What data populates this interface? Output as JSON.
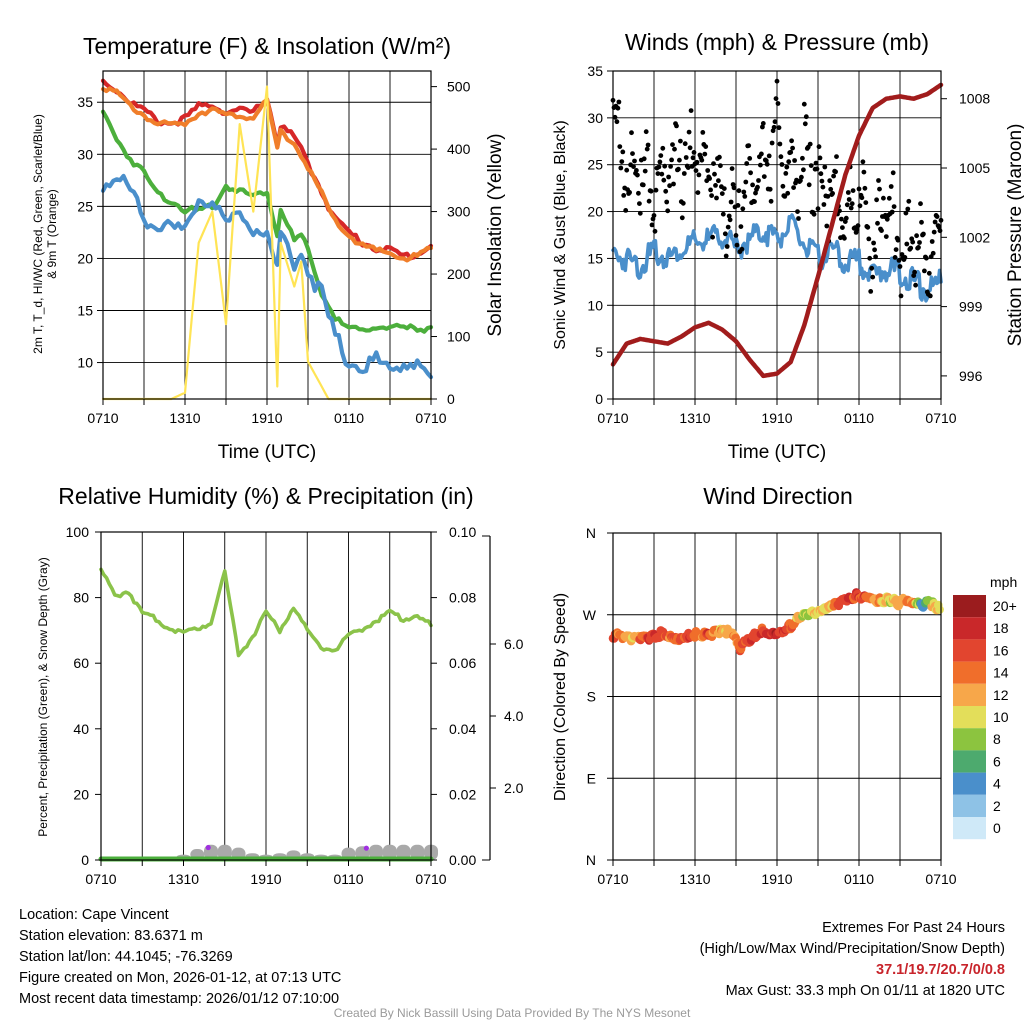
{
  "chart_data": [
    {
      "id": "temp",
      "type": "line",
      "title": "Temperature (F) & Insolation (W/m²)",
      "xlabel": "Time (UTC)",
      "ylabel_lines": [
        "2m T, T_d, HI/WC (Red, Green, Scarlet/Blue)",
        "& 9m T (Orange)"
      ],
      "ylabel_right": "Solar Insolation (Yellow)",
      "x_hours": [
        0,
        1,
        2,
        3,
        4,
        5,
        6,
        7,
        8,
        9,
        10,
        11,
        12,
        12.75,
        13,
        14,
        14.5,
        15,
        16,
        16.5,
        17,
        18,
        19,
        20,
        21,
        22,
        23,
        24
      ],
      "x_ticks": [
        "0710",
        "1310",
        "1910",
        "0110",
        "0710"
      ],
      "ylim": [
        6.5,
        38.0
      ],
      "y_ticks": [
        10,
        15,
        20,
        25,
        30,
        35
      ],
      "y2lim": [
        0,
        525
      ],
      "y2_ticks": [
        0,
        100,
        200,
        300,
        400,
        500
      ],
      "series": [
        {
          "name": "2m T",
          "color": "#d62728",
          "values": [
            37.0,
            36.2,
            35.0,
            34.2,
            33.2,
            33.0,
            33.4,
            34.6,
            34.8,
            34.0,
            34.2,
            34.0,
            35.5,
            31.0,
            32.8,
            31.6,
            30.5,
            29.0,
            26.5,
            25.0,
            23.8,
            22.5,
            21.5,
            21.0,
            20.8,
            20.2,
            20.4,
            21.2
          ]
        },
        {
          "name": "9m T",
          "color": "#f07e2a",
          "values": [
            36.6,
            35.8,
            34.6,
            33.8,
            32.9,
            32.8,
            33.0,
            34.0,
            34.4,
            33.6,
            33.8,
            33.6,
            35.0,
            30.5,
            32.2,
            31.0,
            30.0,
            28.6,
            26.2,
            24.7,
            23.5,
            22.2,
            21.2,
            20.7,
            20.5,
            20.0,
            20.2,
            21.0
          ]
        },
        {
          "name": "T_d",
          "color": "#4caf3c",
          "values": [
            34.0,
            31.5,
            29.6,
            28.2,
            26.2,
            25.6,
            24.7,
            24.5,
            25.0,
            27.0,
            26.5,
            26.0,
            26.5,
            22.3,
            24.8,
            21.7,
            22.1,
            20.8,
            16.5,
            15.6,
            14.2,
            13.2,
            13.0,
            13.6,
            13.3,
            13.3,
            13.2,
            13.4
          ]
        },
        {
          "name": "HI/WC",
          "color": "#4a8fcb",
          "values": [
            27.2,
            27.5,
            26.6,
            24.0,
            23.4,
            22.6,
            22.4,
            26.0,
            25.4,
            23.0,
            24.6,
            23.0,
            22.3,
            18.7,
            22.5,
            19.8,
            20.5,
            18.9,
            16.6,
            14.2,
            12.5,
            10.0,
            9.8,
            10.2,
            9.3,
            10.0,
            9.9,
            8.6
          ]
        },
        {
          "name": "Solar Insolation",
          "axis": "right",
          "color": "#ffe455",
          "values": [
            0,
            0,
            0,
            0,
            0,
            0,
            10,
            250,
            300,
            120,
            440,
            300,
            500,
            20,
            250,
            180,
            220,
            60,
            20,
            0,
            0,
            0,
            0,
            0,
            0,
            0,
            0,
            0
          ]
        }
      ]
    },
    {
      "id": "wind",
      "type": "line",
      "title": "Winds (mph) & Pressure (mb)",
      "xlabel": "Time (UTC)",
      "ylabel": "Sonic Wind & Gust (Blue, Black)",
      "ylabel_right": "Station Pressure (Maroon)",
      "x_hours": [
        0,
        1,
        2,
        3,
        4,
        5,
        6,
        7,
        8,
        9,
        10,
        11,
        12,
        13,
        14,
        15,
        16,
        17,
        18,
        19,
        20,
        21,
        22,
        23,
        24
      ],
      "x_ticks": [
        "0710",
        "1310",
        "1910",
        "0110",
        "0710"
      ],
      "ylim": [
        0,
        35
      ],
      "y_ticks": [
        0,
        5,
        10,
        15,
        20,
        25,
        30,
        35
      ],
      "y2lim": [
        995.0,
        1009.2
      ],
      "y2_ticks": [
        996,
        999,
        1002,
        1005,
        1008
      ],
      "series": [
        {
          "name": "Sonic Wind",
          "color": "#4a8fcb",
          "values": [
            15.5,
            15.0,
            14.2,
            15.8,
            15.0,
            16.0,
            16.6,
            17.0,
            17.5,
            16.0,
            17.0,
            18.0,
            17.2,
            18.5,
            16.5,
            15.0,
            16.0,
            14.5,
            14.8,
            13.0,
            14.0,
            13.5,
            12.5,
            11.5,
            12.5
          ]
        },
        {
          "name": "Gust",
          "style": "markers",
          "color": "#000000",
          "values": [
            32.8,
            24.5,
            25.5,
            23.0,
            26.2,
            26.5,
            28.0,
            25.5,
            22.0,
            20.5,
            25.0,
            26.5,
            30.0,
            24.5,
            27.5,
            24.5,
            23.0,
            20.5,
            23.0,
            17.5,
            22.5,
            17.0,
            17.5,
            16.0,
            19.5
          ]
        },
        {
          "name": "Station Pressure",
          "axis": "right",
          "color": "#a11c1c",
          "values": [
            996.5,
            997.4,
            997.6,
            997.5,
            997.4,
            997.7,
            998.1,
            998.3,
            998.0,
            997.5,
            996.7,
            996.0,
            996.1,
            996.6,
            998.2,
            1000.3,
            1002.5,
            1004.7,
            1006.4,
            1007.6,
            1008.0,
            1008.1,
            1008.0,
            1008.2,
            1008.6
          ]
        }
      ]
    },
    {
      "id": "rh",
      "type": "area",
      "title": "Relative Humidity (%) & Precipitation (in)",
      "ylabel": "Percent, Precipitation (Green), & Snow Depth (Gray)",
      "x_hours": [
        0,
        1,
        2,
        3,
        4,
        5,
        6,
        7,
        8,
        9,
        10,
        11,
        12,
        13,
        14,
        15,
        16,
        17,
        18,
        19,
        20,
        21,
        22,
        23,
        24
      ],
      "x_ticks": [
        "0710",
        "1310",
        "1910",
        "0110",
        "0710"
      ],
      "ylim": [
        0,
        100
      ],
      "y_ticks": [
        0,
        20,
        40,
        60,
        80,
        100
      ],
      "y2lim": [
        0,
        0.1
      ],
      "y2_ticks": [
        "0.00",
        "0.02",
        "0.04",
        "0.06",
        "0.08",
        "0.10"
      ],
      "y3_ticks": [
        "2.0",
        "4.0",
        "6.0"
      ],
      "series": [
        {
          "name": "Relative Humidity",
          "color": "#8bc34a",
          "values": [
            88.5,
            80.5,
            82.0,
            75.0,
            73.5,
            70.5,
            69.5,
            70.5,
            72.5,
            88.0,
            62.5,
            68.0,
            75.5,
            70.0,
            77.0,
            70.0,
            65.0,
            64.0,
            68.0,
            70.5,
            73.0,
            75.5,
            73.5,
            74.5,
            71.5
          ]
        },
        {
          "name": "Precipitation",
          "color": "#4caf3c",
          "values": [
            0,
            0,
            0,
            0,
            0,
            0,
            0,
            0,
            0,
            0,
            0,
            0,
            0,
            0,
            0,
            0,
            0,
            0,
            0,
            0,
            0,
            0,
            0,
            0,
            0
          ]
        },
        {
          "name": "Snow Depth",
          "color": "#a9a9a9",
          "values": [
            0,
            0,
            0,
            0,
            0,
            0,
            0.1,
            0.5,
            0.8,
            0.8,
            0.6,
            0.2,
            0.1,
            0.2,
            0.4,
            0.2,
            0.1,
            0.1,
            0.6,
            0.7,
            0.8,
            0.8,
            0.8,
            0.8,
            0.8
          ]
        }
      ]
    },
    {
      "id": "dir",
      "type": "scatter",
      "title": "Wind Direction",
      "ylabel": "Direction (Colored By Speed)",
      "x_ticks": [
        "0710",
        "1310",
        "1910",
        "0110",
        "0710"
      ],
      "y_ticks": [
        "N",
        "E",
        "S",
        "W",
        "N"
      ],
      "ylim": [
        0,
        360
      ],
      "legend_title": "mph",
      "legend_labels": [
        "20+",
        "18",
        "16",
        "14",
        "12",
        "10",
        "8",
        "6",
        "4",
        "2",
        "0"
      ],
      "legend_colors": [
        "#9b1c1e",
        "#c9282a",
        "#e2452f",
        "#f06e2b",
        "#f7a74a",
        "#e3de5a",
        "#8cc43f",
        "#4daa6e",
        "#4a8fcb",
        "#8ec2e6",
        "#cfe9f8"
      ],
      "points": [
        {
          "h": 0.0,
          "deg": 250,
          "mph": 17
        },
        {
          "h": 0.7,
          "deg": 247,
          "mph": 15
        },
        {
          "h": 1.4,
          "deg": 245,
          "mph": 13
        },
        {
          "h": 2.1,
          "deg": 246,
          "mph": 16
        },
        {
          "h": 2.8,
          "deg": 248,
          "mph": 18
        },
        {
          "h": 3.5,
          "deg": 251,
          "mph": 17
        },
        {
          "h": 4.2,
          "deg": 249,
          "mph": 15
        },
        {
          "h": 4.9,
          "deg": 247,
          "mph": 17
        },
        {
          "h": 5.6,
          "deg": 250,
          "mph": 18
        },
        {
          "h": 6.3,
          "deg": 250,
          "mph": 16
        },
        {
          "h": 7.0,
          "deg": 251,
          "mph": 17
        },
        {
          "h": 7.7,
          "deg": 252,
          "mph": 14
        },
        {
          "h": 8.3,
          "deg": 254,
          "mph": 12
        },
        {
          "h": 8.9,
          "deg": 246,
          "mph": 13
        },
        {
          "h": 9.3,
          "deg": 232,
          "mph": 15
        },
        {
          "h": 9.6,
          "deg": 240,
          "mph": 17
        },
        {
          "h": 10.2,
          "deg": 248,
          "mph": 19
        },
        {
          "h": 10.9,
          "deg": 254,
          "mph": 18
        },
        {
          "h": 11.6,
          "deg": 253,
          "mph": 19
        },
        {
          "h": 12.3,
          "deg": 254,
          "mph": 18
        },
        {
          "h": 13.0,
          "deg": 260,
          "mph": 16
        },
        {
          "h": 13.6,
          "deg": 268,
          "mph": 13
        },
        {
          "h": 14.2,
          "deg": 274,
          "mph": 11
        },
        {
          "h": 14.8,
          "deg": 272,
          "mph": 14
        },
        {
          "h": 15.4,
          "deg": 276,
          "mph": 12
        },
        {
          "h": 16.0,
          "deg": 280,
          "mph": 13
        },
        {
          "h": 16.6,
          "deg": 285,
          "mph": 16
        },
        {
          "h": 17.2,
          "deg": 289,
          "mph": 17
        },
        {
          "h": 17.8,
          "deg": 293,
          "mph": 18
        },
        {
          "h": 18.4,
          "deg": 293,
          "mph": 17
        },
        {
          "h": 19.0,
          "deg": 291,
          "mph": 16
        },
        {
          "h": 19.6,
          "deg": 287,
          "mph": 13
        },
        {
          "h": 20.2,
          "deg": 289,
          "mph": 11
        },
        {
          "h": 20.8,
          "deg": 285,
          "mph": 12
        },
        {
          "h": 21.4,
          "deg": 288,
          "mph": 13
        },
        {
          "h": 21.9,
          "deg": 282,
          "mph": 15
        },
        {
          "h": 22.4,
          "deg": 283,
          "mph": 9
        },
        {
          "h": 22.7,
          "deg": 279,
          "mph": 6
        },
        {
          "h": 23.0,
          "deg": 287,
          "mph": 10
        },
        {
          "h": 23.4,
          "deg": 283,
          "mph": 12
        },
        {
          "h": 23.8,
          "deg": 280,
          "mph": 11
        },
        {
          "h": 24.0,
          "deg": 281,
          "mph": 12
        }
      ]
    }
  ],
  "footer": {
    "location": "Location: Cape Vincent",
    "elevation": "Station elevation: 83.6371 m",
    "latlon": "Station lat/lon: 44.1045; -76.3269",
    "created": "Figure created on Mon, 2026-01-12, at 07:13 UTC",
    "recent": "Most recent data timestamp: 2026/01/12 07:10:00",
    "extremes_title": "Extremes For Past 24 Hours",
    "extremes_subtitle": "(High/Low/Max Wind/Precipitation/Snow Depth)",
    "extremes_values": "37.1/19.7/20.7/0/0.8",
    "max_gust": "Max Gust: 33.3 mph On 01/11 at 1820 UTC",
    "credit": "Created By Nick Bassill Using Data Provided By The NYS Mesonet"
  }
}
